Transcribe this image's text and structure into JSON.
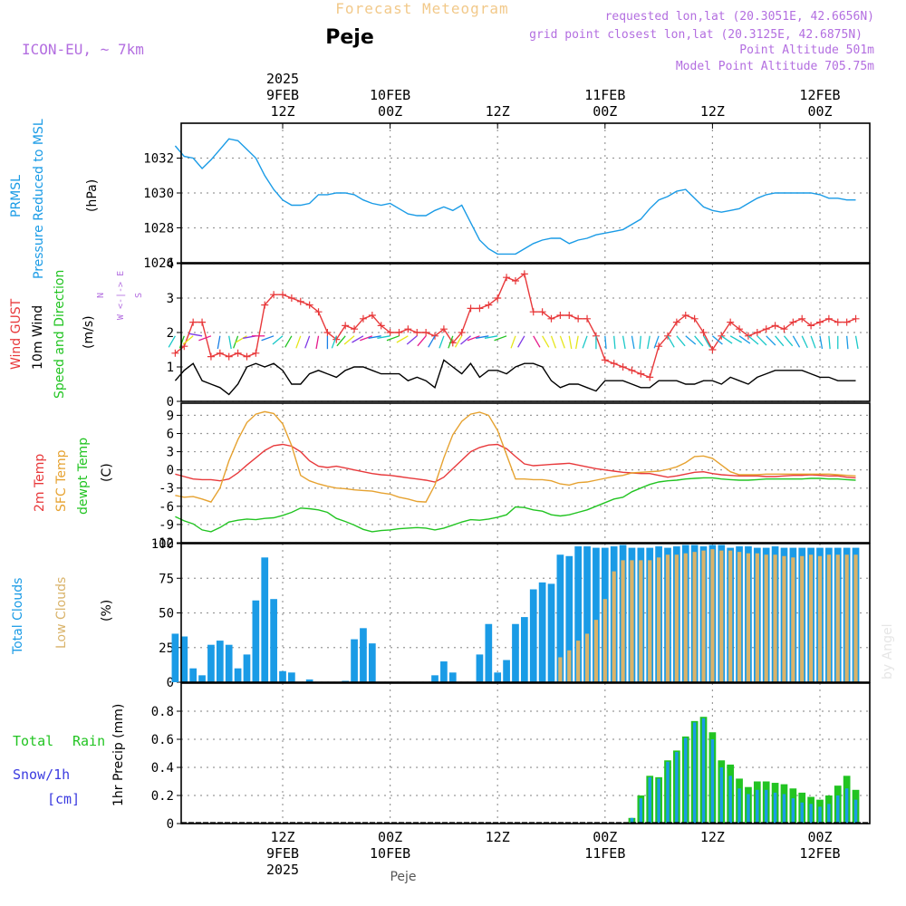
{
  "header": {
    "title": "Forecast Meteogram",
    "model": "ICON-EU, ~ 7km",
    "location": "Peje",
    "requested": "requested lon,lat (20.3051E, 42.6656N)",
    "grid": "grid point closest lon,lat (20.3125E, 42.6875N)",
    "point_altitude": "Point Altitude 501m",
    "model_altitude": "Model Point Altitude 705.75m",
    "footer": "Peje",
    "watermark": "by Angel"
  },
  "time_axis": {
    "top_labels": [
      {
        "step": 12,
        "lines": [
          "2025",
          "9FEB",
          "12Z"
        ]
      },
      {
        "step": 24,
        "lines": [
          "10FEB",
          "00Z"
        ]
      },
      {
        "step": 36,
        "lines": [
          "12Z"
        ]
      },
      {
        "step": 48,
        "lines": [
          "11FEB",
          "00Z"
        ]
      },
      {
        "step": 60,
        "lines": [
          "12Z"
        ]
      },
      {
        "step": 72,
        "lines": [
          "12FEB",
          "00Z"
        ]
      }
    ],
    "bottom_labels": [
      {
        "step": 12,
        "lines": [
          "12Z",
          "9FEB",
          "2025"
        ]
      },
      {
        "step": 24,
        "lines": [
          "00Z",
          "10FEB"
        ]
      },
      {
        "step": 36,
        "lines": [
          "12Z"
        ]
      },
      {
        "step": 48,
        "lines": [
          "00Z",
          "11FEB"
        ]
      },
      {
        "step": 60,
        "lines": [
          "12Z"
        ]
      },
      {
        "step": 72,
        "lines": [
          "00Z",
          "12FEB"
        ]
      }
    ]
  },
  "panel_labels": {
    "pressure": {
      "lines": [
        "PRMSL",
        "Pressure Reduced to MSL"
      ],
      "unit": "(hPa)",
      "color": "#1a9be6"
    },
    "wind": {
      "gust": "Wind GUST",
      "wind10": "10m Wind",
      "speed": "Speed and Direction",
      "unit": "(m/s)",
      "compass": [
        "N",
        "W <-|-> E",
        "S"
      ]
    },
    "temp": {
      "t2m": "2m Temp",
      "sfc": "SFC Temp",
      "dewpt": "dewpt Temp",
      "unit": "(C)"
    },
    "clouds": {
      "total": "Total Clouds",
      "low": "Low Clouds",
      "unit": "(%)"
    },
    "precip": {
      "total": "Total",
      "rain": "Rain",
      "snow": "Snow/1h",
      "snow_unit": "[cm]",
      "unit": "1hr Precip (mm)"
    }
  },
  "colors": {
    "pressure": "#1a9be6",
    "gust": "#e8393b",
    "wind10": "#000000",
    "t2m": "#e8393b",
    "sfc": "#e6a230",
    "dewpt": "#22c422",
    "total_clouds": "#1a9be6",
    "low_clouds": "#d9b36a",
    "total_precip": "#22c422",
    "rain": "#1a9be6",
    "snow": "#3a3ae0",
    "purple": "#b36ee0",
    "title_color": "#f2c98a"
  },
  "chart_data": [
    {
      "type": "line",
      "name": "PRMSL",
      "ylabel": "(hPa)",
      "ylim": [
        1026,
        1034
      ],
      "yticks": [
        1026,
        1028,
        1030,
        1032
      ],
      "x_step_hours": 1,
      "series": [
        {
          "values": [
            1032.7,
            1032.1,
            1032.0,
            1031.4,
            1031.9,
            1032.5,
            1033.1,
            1033.0,
            1032.5,
            1032.0,
            1031.0,
            1030.2,
            1029.6,
            1029.3,
            1029.3,
            1029.4,
            1029.9,
            1029.9,
            1030.0,
            1030.0,
            1029.9,
            1029.6,
            1029.4,
            1029.3,
            1029.4,
            1029.1,
            1028.8,
            1028.7,
            1028.7,
            1029.0,
            1029.2,
            1029.0,
            1029.3,
            1028.3,
            1027.3,
            1026.8,
            1026.5,
            1026.5,
            1026.5,
            1026.8,
            1027.1,
            1027.3,
            1027.4,
            1027.4,
            1027.1,
            1027.3,
            1027.4,
            1027.6,
            1027.7,
            1027.8,
            1027.9,
            1028.2,
            1028.5,
            1029.1,
            1029.6,
            1029.8,
            1030.1,
            1030.2,
            1029.7,
            1029.2,
            1029.0,
            1028.9,
            1029.0,
            1029.1,
            1029.4,
            1029.7,
            1029.9,
            1030.0,
            1030.0,
            1030.0,
            1030.0,
            1030.0,
            1029.9,
            1029.7,
            1029.7,
            1029.6,
            1029.6
          ]
        }
      ]
    },
    {
      "type": "line",
      "name": "Wind",
      "ylabel": "(m/s)",
      "ylim": [
        0,
        4
      ],
      "yticks": [
        0,
        1,
        2,
        3,
        4
      ],
      "series": [
        {
          "name": "Wind GUST",
          "values": [
            1.4,
            1.6,
            2.3,
            2.3,
            1.3,
            1.4,
            1.3,
            1.4,
            1.3,
            1.4,
            2.8,
            3.1,
            3.1,
            3.0,
            2.9,
            2.8,
            2.6,
            2.0,
            1.8,
            2.2,
            2.1,
            2.4,
            2.5,
            2.2,
            2.0,
            2.0,
            2.1,
            2.0,
            2.0,
            1.9,
            2.1,
            1.7,
            2.0,
            2.7,
            2.7,
            2.8,
            3.0,
            3.6,
            3.5,
            3.7,
            2.6,
            2.6,
            2.4,
            2.5,
            2.5,
            2.4,
            2.4,
            1.9,
            1.2,
            1.1,
            1.0,
            0.9,
            0.8,
            0.7,
            1.6,
            1.9,
            2.3,
            2.5,
            2.4,
            2.0,
            1.5,
            1.9,
            2.3,
            2.1,
            1.9,
            2.0,
            2.1,
            2.2,
            2.1,
            2.3,
            2.4,
            2.2,
            2.3,
            2.4,
            2.3,
            2.3,
            2.4
          ]
        },
        {
          "name": "10m Wind",
          "values": [
            0.6,
            0.9,
            1.1,
            0.6,
            0.5,
            0.4,
            0.2,
            0.5,
            1.0,
            1.1,
            1.0,
            1.1,
            0.9,
            0.5,
            0.5,
            0.8,
            0.9,
            0.8,
            0.7,
            0.9,
            1.0,
            1.0,
            0.9,
            0.8,
            0.8,
            0.8,
            0.6,
            0.7,
            0.6,
            0.4,
            1.2,
            1.0,
            0.8,
            1.1,
            0.7,
            0.9,
            0.9,
            0.8,
            1.0,
            1.1,
            1.1,
            1.0,
            0.6,
            0.4,
            0.5,
            0.5,
            0.4,
            0.3,
            0.6,
            0.6,
            0.6,
            0.5,
            0.4,
            0.4,
            0.6,
            0.6,
            0.6,
            0.5,
            0.5,
            0.6,
            0.6,
            0.5,
            0.7,
            0.6,
            0.5,
            0.7,
            0.8,
            0.9,
            0.9,
            0.9,
            0.9,
            0.8,
            0.7,
            0.7,
            0.6,
            0.6,
            0.6
          ]
        }
      ]
    },
    {
      "type": "line",
      "name": "Temperature",
      "ylabel": "(C)",
      "ylim": [
        -12,
        11
      ],
      "yticks": [
        -12,
        -9,
        -6,
        -3,
        0,
        3,
        6,
        9
      ],
      "series": [
        {
          "name": "2m Temp",
          "values": [
            -0.7,
            -1.1,
            -1.5,
            -1.6,
            -1.6,
            -1.8,
            -1.5,
            -0.5,
            0.8,
            2.0,
            3.2,
            4.0,
            4.2,
            3.9,
            3.0,
            1.5,
            0.6,
            0.4,
            0.6,
            0.3,
            0.0,
            -0.3,
            -0.6,
            -0.8,
            -0.9,
            -1.1,
            -1.3,
            -1.5,
            -1.7,
            -2.0,
            -1.2,
            0.2,
            1.6,
            3.0,
            3.7,
            4.1,
            4.2,
            3.5,
            2.2,
            1.0,
            0.7,
            0.8,
            0.9,
            1.0,
            1.1,
            0.8,
            0.5,
            0.2,
            0.0,
            -0.2,
            -0.4,
            -0.5,
            -0.6,
            -0.6,
            -0.9,
            -1.2,
            -1.0,
            -0.7,
            -0.4,
            -0.3,
            -0.6,
            -0.8,
            -0.9,
            -1.0,
            -1.0,
            -1.0,
            -1.1,
            -1.1,
            -1.0,
            -0.9,
            -0.9,
            -0.8,
            -0.9,
            -1.0,
            -1.0,
            -1.2,
            -1.3
          ]
        },
        {
          "name": "SFC Temp",
          "values": [
            -4.2,
            -4.5,
            -4.4,
            -4.8,
            -5.3,
            -3.0,
            1.5,
            5.0,
            7.8,
            9.2,
            9.6,
            9.3,
            7.6,
            4.0,
            -0.9,
            -1.8,
            -2.3,
            -2.7,
            -3.0,
            -3.1,
            -3.3,
            -3.4,
            -3.5,
            -3.8,
            -4.0,
            -4.5,
            -4.8,
            -5.2,
            -5.3,
            -2.5,
            2.0,
            5.8,
            8.0,
            9.2,
            9.5,
            9.0,
            6.5,
            2.5,
            -1.5,
            -1.5,
            -1.6,
            -1.6,
            -1.8,
            -2.3,
            -2.5,
            -2.1,
            -2.0,
            -1.7,
            -1.4,
            -1.1,
            -0.9,
            -0.5,
            -0.4,
            -0.3,
            -0.2,
            0.1,
            0.5,
            1.2,
            2.2,
            2.3,
            1.9,
            0.8,
            -0.3,
            -0.8,
            -0.8,
            -0.8,
            -0.7,
            -0.7,
            -0.7,
            -0.7,
            -0.7,
            -0.7,
            -0.7,
            -0.7,
            -0.8,
            -0.9,
            -1.0
          ]
        },
        {
          "name": "dewpt Temp",
          "values": [
            -7.7,
            -8.4,
            -8.9,
            -9.9,
            -10.2,
            -9.5,
            -8.6,
            -8.3,
            -8.1,
            -8.2,
            -8.0,
            -7.9,
            -7.5,
            -7.0,
            -6.3,
            -6.4,
            -6.6,
            -7.0,
            -8.0,
            -8.5,
            -9.1,
            -9.8,
            -10.2,
            -10.0,
            -9.9,
            -9.7,
            -9.6,
            -9.5,
            -9.6,
            -9.9,
            -9.6,
            -9.1,
            -8.6,
            -8.2,
            -8.3,
            -8.1,
            -7.8,
            -7.4,
            -6.1,
            -6.2,
            -6.6,
            -6.8,
            -7.4,
            -7.6,
            -7.4,
            -7.0,
            -6.6,
            -6.0,
            -5.4,
            -4.8,
            -4.5,
            -3.6,
            -3.0,
            -2.4,
            -2.0,
            -1.8,
            -1.7,
            -1.5,
            -1.4,
            -1.3,
            -1.3,
            -1.5,
            -1.6,
            -1.7,
            -1.7,
            -1.6,
            -1.5,
            -1.5,
            -1.5,
            -1.5,
            -1.5,
            -1.4,
            -1.4,
            -1.5,
            -1.5,
            -1.6,
            -1.7
          ]
        }
      ]
    },
    {
      "type": "bar",
      "name": "Clouds",
      "ylabel": "(%)",
      "ylim": [
        0,
        100
      ],
      "yticks": [
        0,
        25,
        50,
        75,
        100
      ],
      "series": [
        {
          "name": "Total Clouds",
          "values": [
            35,
            33,
            10,
            5,
            27,
            30,
            27,
            10,
            20,
            59,
            90,
            60,
            8,
            7,
            0,
            2,
            0,
            0,
            0,
            1,
            31,
            39,
            28,
            0,
            0,
            0,
            0,
            0,
            0,
            5,
            15,
            7,
            0,
            0,
            20,
            42,
            7,
            16,
            42,
            47,
            67,
            72,
            71,
            92,
            91,
            98,
            98,
            97,
            97,
            98,
            99,
            97,
            97,
            97,
            98,
            97,
            98,
            99,
            99,
            98,
            99,
            99,
            97,
            98,
            98,
            97,
            97,
            98,
            97,
            97,
            97,
            97,
            97,
            97,
            97,
            97,
            97
          ]
        },
        {
          "name": "Low Clouds",
          "values": [
            0,
            0,
            0,
            0,
            0,
            0,
            0,
            0,
            0,
            0,
            0,
            0,
            0,
            0,
            0,
            0,
            0,
            0,
            0,
            0,
            0,
            0,
            0,
            0,
            0,
            0,
            0,
            0,
            0,
            0,
            0,
            0,
            0,
            0,
            0,
            0,
            0,
            0,
            0,
            0,
            0,
            0,
            0,
            18,
            23,
            30,
            35,
            45,
            60,
            80,
            88,
            88,
            88,
            88,
            90,
            92,
            92,
            93,
            94,
            95,
            96,
            95,
            95,
            94,
            93,
            93,
            92,
            92,
            91,
            90,
            91,
            92,
            91,
            92,
            92,
            92,
            92
          ]
        }
      ]
    },
    {
      "type": "bar",
      "name": "Precipitation",
      "ylabel": "1hr Precip (mm)",
      "ylim": [
        0,
        1.0
      ],
      "yticks": [
        0,
        0.2,
        0.4,
        0.6,
        0.8
      ],
      "series": [
        {
          "name": "Total",
          "values": [
            0,
            0,
            0,
            0,
            0,
            0,
            0,
            0,
            0,
            0,
            0,
            0,
            0,
            0,
            0,
            0,
            0,
            0,
            0,
            0,
            0,
            0,
            0,
            0,
            0,
            0,
            0,
            0,
            0,
            0,
            0,
            0,
            0,
            0,
            0,
            0,
            0,
            0,
            0,
            0,
            0,
            0,
            0,
            0,
            0,
            0,
            0,
            0,
            0,
            0,
            0,
            0.04,
            0.2,
            0.34,
            0.33,
            0.45,
            0.52,
            0.62,
            0.73,
            0.76,
            0.65,
            0.45,
            0.42,
            0.32,
            0.26,
            0.3,
            0.3,
            0.29,
            0.28,
            0.25,
            0.22,
            0.19,
            0.17,
            0.2,
            0.27,
            0.34,
            0.24
          ]
        },
        {
          "name": "Rain",
          "values": [
            0,
            0,
            0,
            0,
            0,
            0,
            0,
            0,
            0,
            0,
            0,
            0,
            0,
            0,
            0,
            0,
            0,
            0,
            0,
            0,
            0,
            0,
            0,
            0,
            0,
            0,
            0,
            0,
            0,
            0,
            0,
            0,
            0,
            0,
            0,
            0,
            0,
            0,
            0,
            0,
            0,
            0,
            0,
            0,
            0,
            0,
            0,
            0,
            0,
            0,
            0,
            0.04,
            0.18,
            0.33,
            0.32,
            0.44,
            0.51,
            0.61,
            0.72,
            0.75,
            0.6,
            0.4,
            0.34,
            0.25,
            0.21,
            0.24,
            0.24,
            0.22,
            0.21,
            0.18,
            0.15,
            0.14,
            0.12,
            0.14,
            0.2,
            0.25,
            0.17
          ]
        }
      ]
    }
  ]
}
